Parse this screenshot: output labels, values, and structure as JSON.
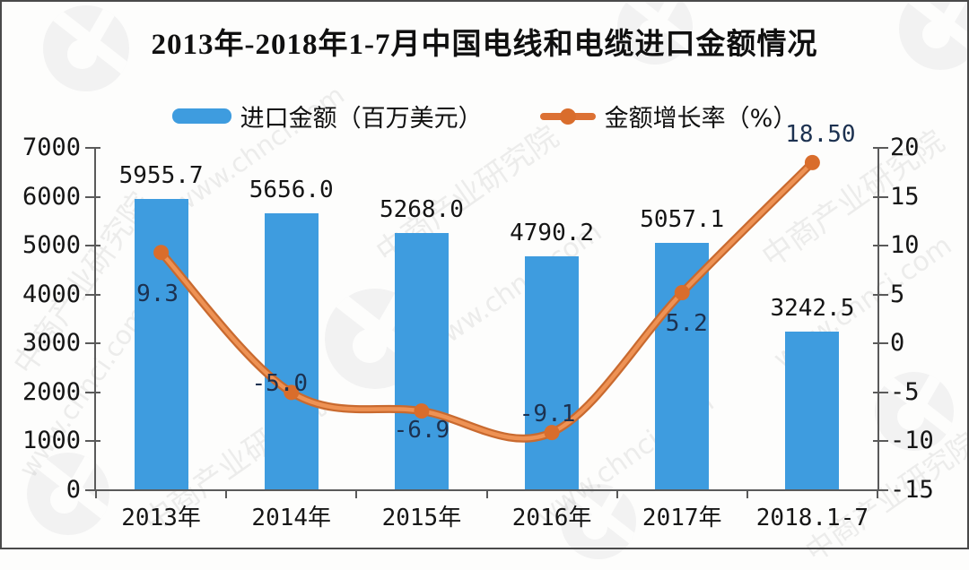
{
  "title": "2013年-2018年1-7月中国电线和电缆进口金额情况",
  "legend": [
    {
      "label": "进口金额（百万美元）",
      "type": "bar",
      "color": "#3e9cdf"
    },
    {
      "label": "金额增长率（%）",
      "type": "line",
      "color": "#dc7134"
    }
  ],
  "watermark": {
    "brand": "中商产业研究院",
    "site": "www.chnci.com"
  },
  "colors": {
    "bar": "#3e9cdf",
    "line": "#dc7134",
    "line_edge": "#c96a2f",
    "line_core": "#ee9254",
    "marker": "#d96d2c",
    "axis": "#5a5a5a",
    "bar_label": "#141414",
    "line_label": "#1c3150"
  },
  "chart_data": {
    "type": "bar",
    "subtype": "bar+line dual axis",
    "title": "2013年-2018年1-7月中国电线和电缆进口金额情况",
    "categories": [
      "2013年",
      "2014年",
      "2015年",
      "2016年",
      "2017年",
      "2018.1-7"
    ],
    "series": [
      {
        "name": "进口金额（百万美元）",
        "type": "bar",
        "axis": "left",
        "values": [
          5955.7,
          5656.0,
          5268.0,
          4790.2,
          5057.1,
          3242.5
        ],
        "labels": [
          "5955.7",
          "5656.0",
          "5268.0",
          "4790.2",
          "5057.1",
          "3242.5"
        ],
        "color": "#3e9cdf"
      },
      {
        "name": "金额增长率（%）",
        "type": "line",
        "axis": "right",
        "values": [
          9.3,
          -5.0,
          -6.9,
          -9.1,
          5.2,
          18.5
        ],
        "labels": [
          "9.3",
          "-5.0",
          "-6.9",
          "-9.1",
          "5.2",
          "18.50"
        ],
        "color": "#dc7134"
      }
    ],
    "left_axis": {
      "min": 0,
      "max": 7000,
      "step": 1000,
      "ticks": [
        "0",
        "1000",
        "2000",
        "3000",
        "4000",
        "5000",
        "6000",
        "7000"
      ]
    },
    "right_axis": {
      "min": -15,
      "max": 20,
      "step": 5,
      "ticks": [
        "-15",
        "-10",
        "-5",
        "0",
        "5",
        "10",
        "15",
        "20"
      ]
    },
    "grid": false,
    "legend_position": "top"
  }
}
